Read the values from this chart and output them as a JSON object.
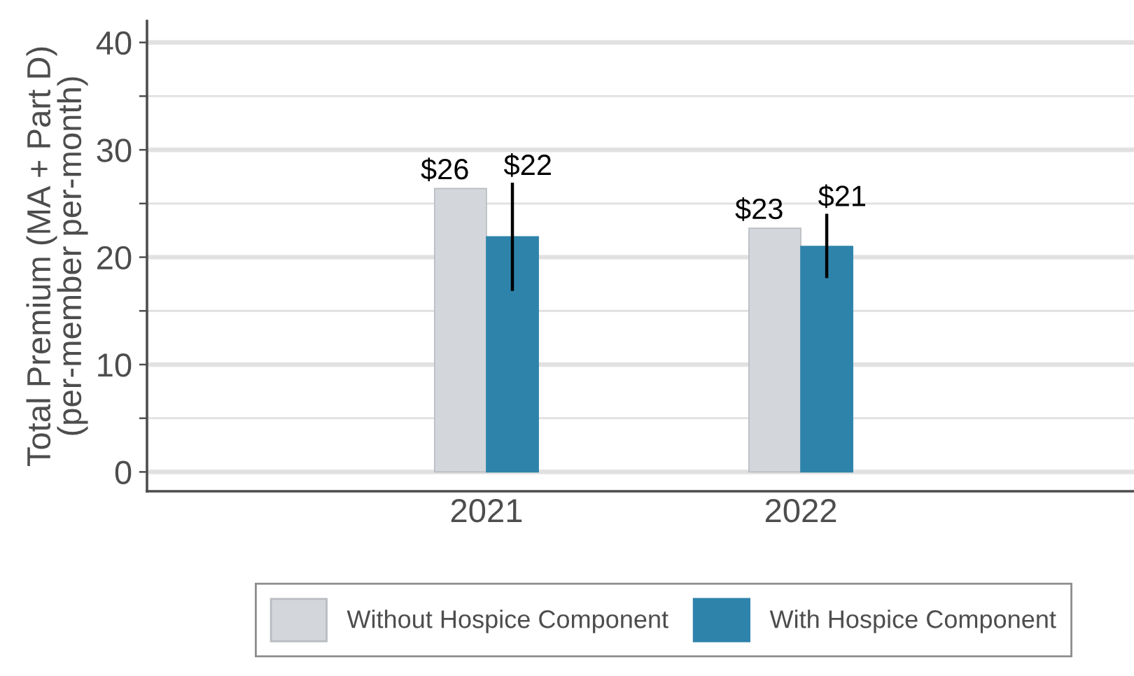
{
  "chart_data": {
    "type": "bar",
    "ylabel": "Total Premium (MA + Part D)\n(per-member per-month)",
    "categories": [
      "2021",
      "2022"
    ],
    "series": [
      {
        "name": "Without Hospice Component",
        "color": "#d3d6db",
        "values": [
          26.4,
          22.7
        ],
        "value_labels": [
          "$26",
          "$23"
        ]
      },
      {
        "name": "With Hospice Component",
        "color": "#2e83ab",
        "values": [
          21.9,
          21.0
        ],
        "value_labels": [
          "$22",
          "$21"
        ],
        "errors": [
          [
            17.0,
            26.8
          ],
          [
            18.2,
            23.9
          ]
        ]
      }
    ],
    "ylim": [
      -1.8,
      42
    ],
    "yticks": [
      0,
      {
        "value": 5,
        "label": null
      },
      10,
      {
        "value": 15,
        "label": null
      },
      20,
      {
        "value": 25,
        "label": null
      },
      30,
      {
        "value": 35,
        "label": null
      },
      40
    ],
    "grid": "y",
    "legend": "bottom"
  }
}
